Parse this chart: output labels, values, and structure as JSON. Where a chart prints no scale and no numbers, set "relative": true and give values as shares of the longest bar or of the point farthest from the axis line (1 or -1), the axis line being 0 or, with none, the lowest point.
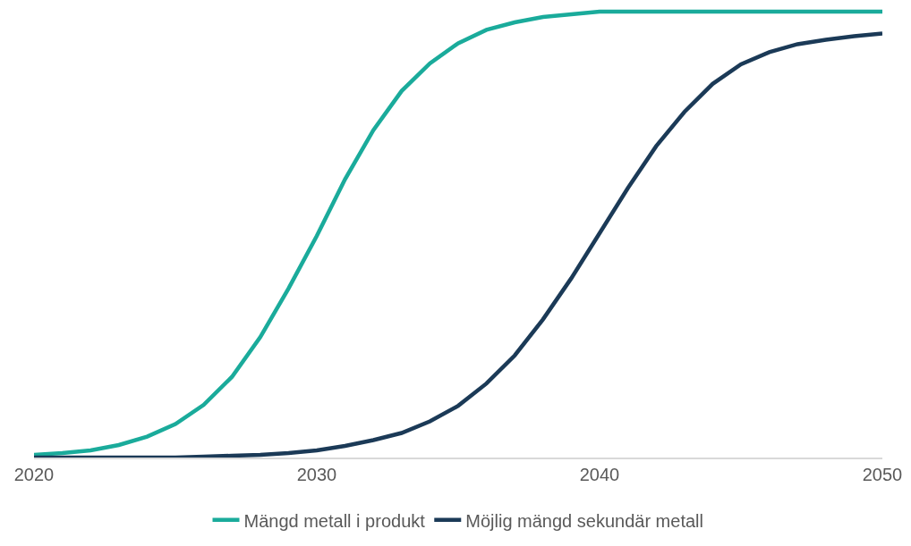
{
  "chart_data": {
    "type": "line",
    "relative": true,
    "x": [
      2020,
      2021,
      2022,
      2023,
      2024,
      2025,
      2026,
      2027,
      2028,
      2029,
      2030,
      2031,
      2032,
      2033,
      2034,
      2035,
      2036,
      2037,
      2038,
      2039,
      2040,
      2041,
      2042,
      2043,
      2044,
      2045,
      2046,
      2047,
      2048,
      2049,
      2050
    ],
    "xlim": [
      2020,
      2050
    ],
    "xticks": [
      2020,
      2030,
      2040,
      2050
    ],
    "legend": "bottom",
    "marker": "none",
    "line_style": "solid",
    "series": [
      {
        "name": "Mängd metall i produkt",
        "color": "#1aab9b",
        "values": [
          0.006,
          0.01,
          0.016,
          0.028,
          0.047,
          0.075,
          0.118,
          0.181,
          0.27,
          0.379,
          0.497,
          0.624,
          0.734,
          0.822,
          0.884,
          0.929,
          0.959,
          0.976,
          0.988,
          0.994,
          1,
          1,
          1,
          1,
          1,
          1,
          1,
          1,
          1,
          1,
          1
        ]
      },
      {
        "name": "Möjlig mängd sekundär metall",
        "color": "#1b3a57",
        "values": [
          0,
          0,
          0,
          0,
          0,
          0,
          0.002,
          0.004,
          0.006,
          0.01,
          0.016,
          0.026,
          0.039,
          0.055,
          0.081,
          0.116,
          0.166,
          0.229,
          0.31,
          0.402,
          0.503,
          0.604,
          0.698,
          0.775,
          0.838,
          0.882,
          0.909,
          0.927,
          0.937,
          0.945,
          0.951
        ]
      }
    ]
  }
}
